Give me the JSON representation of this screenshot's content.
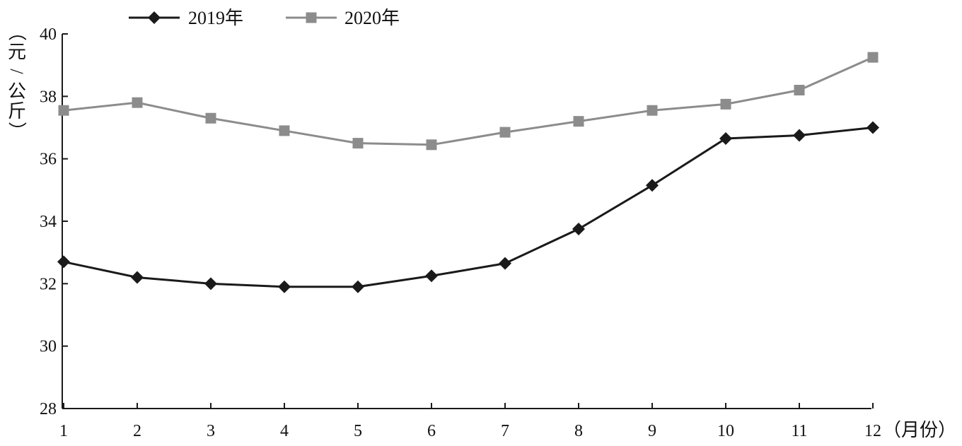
{
  "chart_data": {
    "type": "line",
    "categories": [
      "1",
      "2",
      "3",
      "4",
      "5",
      "6",
      "7",
      "8",
      "9",
      "10",
      "11",
      "12"
    ],
    "series": [
      {
        "name": "2019年",
        "values": [
          32.7,
          32.2,
          32.0,
          31.9,
          31.9,
          32.25,
          32.65,
          33.75,
          35.15,
          36.65,
          36.75,
          37.0
        ],
        "color": "#1a1a1a",
        "marker": "diamond"
      },
      {
        "name": "2020年",
        "values": [
          37.55,
          37.8,
          37.3,
          36.9,
          36.5,
          36.45,
          36.85,
          37.2,
          37.55,
          37.75,
          38.2,
          39.25
        ],
        "color": "#8c8c8c",
        "marker": "square"
      }
    ],
    "ylabel": "（元/公斤）",
    "xlabel_suffix": "（月份）",
    "yticks": [
      28,
      30,
      32,
      34,
      36,
      38,
      40
    ],
    "ylim": [
      28,
      40
    ],
    "grid": false,
    "legend_position": "top-left",
    "axis_color": "#1a1a1a"
  }
}
